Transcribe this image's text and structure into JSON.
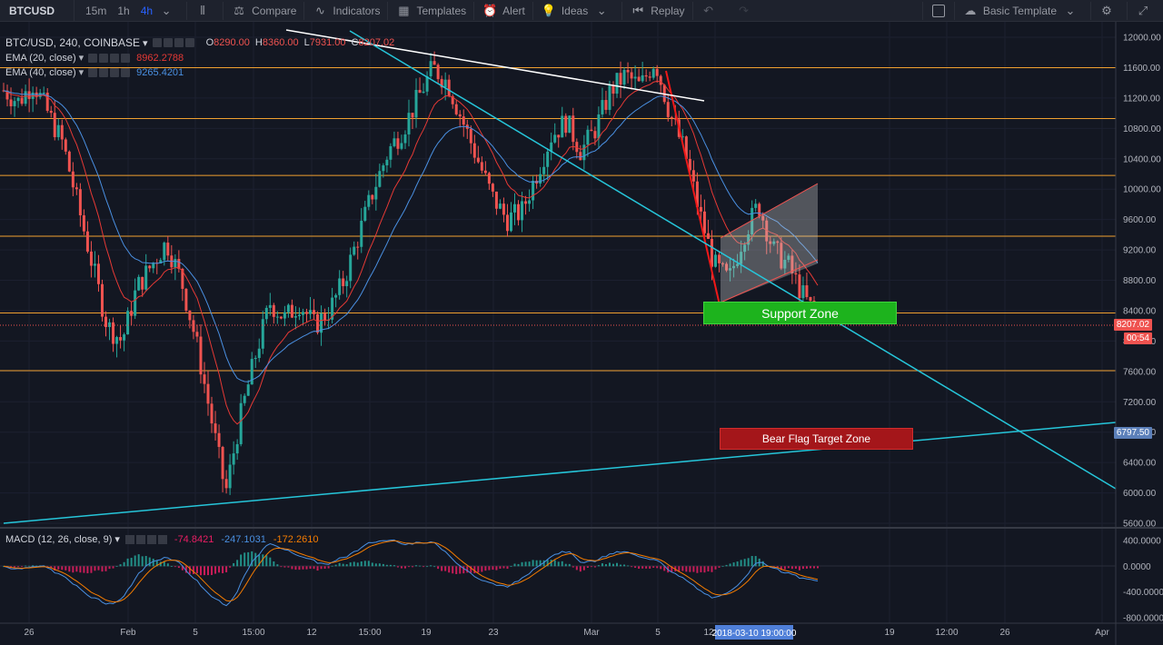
{
  "toolbar": {
    "symbol": "BTCUSD",
    "intervals": [
      "15m",
      "1h",
      "4h"
    ],
    "active_interval": "4h",
    "compare": "Compare",
    "indicators": "Indicators",
    "templates": "Templates",
    "alert": "Alert",
    "ideas": "Ideas",
    "replay": "Replay",
    "template_name": "Basic Template"
  },
  "legend": {
    "title": "BTC/USD, 240, COINBASE",
    "open_k": "O",
    "open": "8290.00",
    "high_k": "H",
    "high": "8360.00",
    "low_k": "L",
    "low": "7931.00",
    "close_k": "C",
    "close": "8207.02",
    "ema20_label": "EMA (20, close)",
    "ema20_value": "8962.2788",
    "ema40_label": "EMA (40, close)",
    "ema40_value": "9265.4201"
  },
  "macd": {
    "label": "MACD (12, 26, close, 9)",
    "hist": "-74.8421",
    "macd": "-247.1031",
    "signal": "-172.2610"
  },
  "zones": {
    "support": "Support Zone",
    "bear": "Bear Flag Target Zone"
  },
  "price_tags": {
    "last": "8207.02",
    "countdown": "00:54",
    "target": "6797.50"
  },
  "time_cursor": "2018-03-10 19:00:00",
  "colors": {
    "background": "#131722",
    "up": "#26a69a",
    "down": "#ef5350",
    "ema20": "#e53935",
    "ema40": "#4a90e2",
    "horizontal_levels": "#f0a030",
    "trendline": "#26c6da"
  },
  "chart_data": {
    "type": "candlestick",
    "y_axis_ticks": [
      12000,
      11600,
      11200,
      10800,
      10400,
      10000,
      9600,
      9200,
      8800,
      8400,
      8000,
      7600,
      7200,
      6800,
      6400,
      6000,
      5600
    ],
    "y_axis_labels": [
      "12000.00",
      "11600.00",
      "11200.00",
      "10800.00",
      "10400.00",
      "10000.00",
      "9600.00",
      "9200.00",
      "8800.00",
      "8400.00",
      "8000.00",
      "7600.00",
      "7200.00",
      "6800.00",
      "6400.00",
      "6000.00",
      "5600.00"
    ],
    "x_axis_labels": [
      "26",
      "Feb",
      "5",
      "15:00",
      "12",
      "15:00",
      "19",
      "23",
      "Mar",
      "5",
      "12:00",
      "19",
      "12:00",
      "26",
      "Apr"
    ],
    "horizontal_levels": [
      11600,
      10930,
      10180,
      9380,
      8370,
      7610
    ],
    "macd_axis_labels": [
      "400.0000",
      "0.0000",
      "-400.0000",
      "-800.0000"
    ],
    "price_path": [
      11300,
      11150,
      11400,
      11000,
      10600,
      9800,
      9000,
      8200,
      8000,
      8700,
      9000,
      9300,
      8800,
      8000,
      7000,
      6000,
      7000,
      7800,
      8500,
      8300,
      8500,
      8200,
      8400,
      8800,
      9400,
      10000,
      10500,
      10800,
      11200,
      11600,
      11400,
      10900,
      10400,
      9900,
      9600,
      9700,
      10200,
      10700,
      10900,
      10500,
      10800,
      11300,
      11500,
      11350,
      11700,
      11000,
      10500,
      9700,
      9000,
      8800,
      9400,
      9800,
      9200,
      9000,
      8600,
      8300
    ],
    "series": [
      {
        "name": "EMA (20, close)"
      },
      {
        "name": "EMA (40, close)"
      }
    ]
  }
}
